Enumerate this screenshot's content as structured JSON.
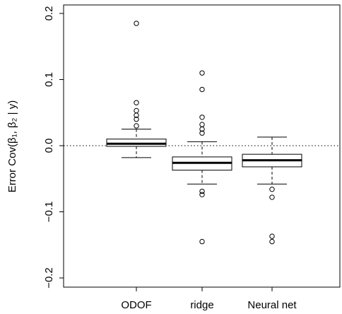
{
  "chart_data": {
    "type": "boxplot",
    "title": "",
    "xlabel": "",
    "ylabel": "Error Cov(β₁, β₂ | y)",
    "ylim": [
      -0.22,
      0.22
    ],
    "yticks": [
      -0.2,
      -0.1,
      0.0,
      0.1,
      0.2
    ],
    "ytick_labels": [
      "−0.2",
      "−0.1",
      "0.0",
      "0.1",
      "0.2"
    ],
    "reference_line": 0.0,
    "grid": false,
    "legend": "none",
    "categories": [
      "ODOF",
      "ridge",
      "Neural net"
    ],
    "boxes": [
      {
        "name": "ODOF",
        "whisker_low": -0.018,
        "q1": -0.001,
        "median": 0.003,
        "q3": 0.01,
        "whisker_high": 0.025,
        "outliers": [
          0.185,
          0.065,
          0.053,
          0.046,
          0.04,
          0.03
        ]
      },
      {
        "name": "ridge",
        "whisker_low": -0.058,
        "q1": -0.037,
        "median": -0.026,
        "q3": -0.017,
        "whisker_high": 0.006,
        "outliers": [
          0.11,
          0.085,
          0.043,
          0.032,
          0.025,
          0.019,
          -0.069,
          -0.074,
          -0.145
        ]
      },
      {
        "name": "Neural net",
        "whisker_low": -0.058,
        "q1": -0.032,
        "median": -0.022,
        "q3": -0.013,
        "whisker_high": 0.013,
        "outliers": [
          -0.066,
          -0.078,
          -0.137,
          -0.145
        ]
      }
    ]
  }
}
